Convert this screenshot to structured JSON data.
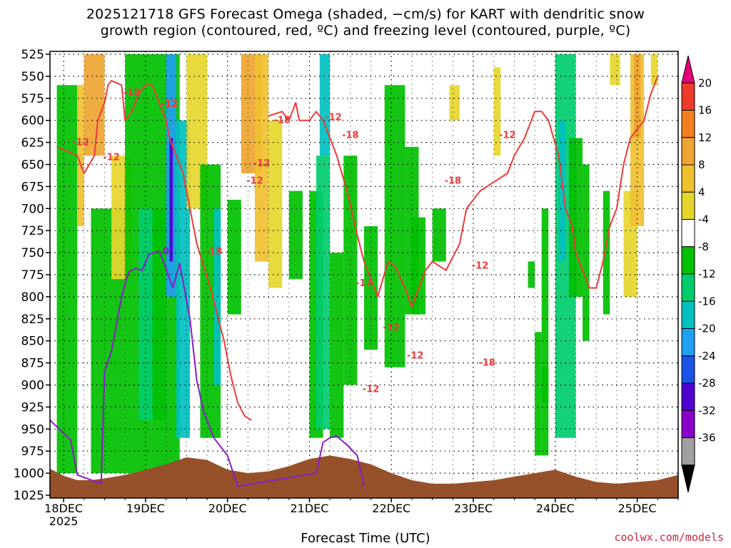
{
  "header": {
    "title_line1": "2025121718 GFS Forecast Omega (shaded, −cm/s) for KART with dendritic snow",
    "title_line2": "growth region (contoured, red, ºC) and freezing level (contoured, purple, ºC)"
  },
  "footer": {
    "credit": "coolwx.com/models"
  },
  "chart_data": {
    "type": "heatmap",
    "title": "2025121718 GFS Forecast Omega (shaded, −cm/s) for KART with dendritic snow growth region (contoured, red, ºC) and freezing level (contoured, purple, ºC)",
    "xlabel": "Forecast Time (UTC)",
    "ylabel": "",
    "y_ticks": [
      525,
      550,
      575,
      600,
      625,
      650,
      675,
      700,
      725,
      750,
      775,
      800,
      825,
      850,
      875,
      900,
      925,
      950,
      975,
      1000,
      1025
    ],
    "y_range_hpa": [
      525,
      1025
    ],
    "y_reversed": true,
    "x_range_hours": [
      -4,
      180
    ],
    "x_ticks": [
      {
        "label": "18DEC",
        "sub": "2025",
        "hour": 0
      },
      {
        "label": "19DEC",
        "sub": "",
        "hour": 24
      },
      {
        "label": "20DEC",
        "sub": "",
        "hour": 48
      },
      {
        "label": "21DEC",
        "sub": "",
        "hour": 72
      },
      {
        "label": "22DEC",
        "sub": "",
        "hour": 96
      },
      {
        "label": "23DEC",
        "sub": "",
        "hour": 120
      },
      {
        "label": "24DEC",
        "sub": "",
        "hour": 144
      },
      {
        "label": "25DEC",
        "sub": "",
        "hour": 168
      }
    ],
    "grid": true,
    "colorbar": {
      "labels": [
        "20",
        "16",
        "12",
        "8",
        "4",
        "-4",
        "-8",
        "-12",
        "-16",
        "-20",
        "-24",
        "-28",
        "-32",
        "-36"
      ],
      "colors": [
        "#e8007a",
        "#ee3a2a",
        "#f28020",
        "#eea531",
        "#f0c030",
        "#e6d62c",
        "#ffffff",
        "#00c000",
        "#00cc6c",
        "#00c0c0",
        "#1fa0f0",
        "#1a53e8",
        "#5000d0",
        "#8a00c8",
        "#a0a0a0",
        "#000000"
      ]
    },
    "freezing_level": {
      "label": "0",
      "color": "#8a1cc8",
      "points": [
        [
          -4,
          940
        ],
        [
          2,
          962
        ],
        [
          4,
          1002
        ],
        [
          11,
          1012
        ],
        [
          12,
          885
        ],
        [
          14,
          862
        ],
        [
          17,
          800
        ],
        [
          19,
          772
        ],
        [
          21,
          768
        ],
        [
          23,
          770
        ],
        [
          25,
          752
        ],
        [
          28,
          748
        ],
        [
          30,
          768
        ],
        [
          32,
          790
        ],
        [
          34,
          762
        ],
        [
          37,
          825
        ],
        [
          39,
          895
        ],
        [
          41,
          930
        ],
        [
          44,
          960
        ],
        [
          48,
          980
        ],
        [
          51,
          1015
        ],
        [
          74,
          1000
        ],
        [
          76,
          965
        ],
        [
          78,
          960
        ],
        [
          80,
          958
        ],
        [
          83,
          968
        ],
        [
          86,
          980
        ],
        [
          88,
          1015
        ]
      ]
    },
    "dgz_contours": {
      "color": "#ee3a3a",
      "labels": [
        "-12",
        "-12",
        "-18",
        "-12",
        "-18",
        "-12",
        "-18",
        "-12",
        "-12",
        "-18",
        "-12",
        "-12",
        "-12",
        "-12",
        "-18",
        "-12",
        "-18",
        "-12"
      ],
      "warm_line_points": [
        [
          -2,
          630
        ],
        [
          4,
          640
        ],
        [
          6,
          660
        ],
        [
          9,
          640
        ],
        [
          10,
          600
        ],
        [
          12,
          580
        ],
        [
          13,
          560
        ],
        [
          14,
          555
        ],
        [
          17,
          560
        ],
        [
          18,
          600
        ],
        [
          20,
          590
        ],
        [
          22,
          570
        ],
        [
          24,
          560
        ],
        [
          26,
          560
        ],
        [
          28,
          580
        ],
        [
          30,
          600
        ],
        [
          31,
          620
        ],
        [
          32,
          630
        ],
        [
          33,
          640
        ],
        [
          35,
          660
        ],
        [
          37,
          700
        ],
        [
          39,
          740
        ],
        [
          41,
          765
        ],
        [
          43,
          790
        ],
        [
          45,
          820
        ],
        [
          47,
          850
        ],
        [
          49,
          890
        ],
        [
          51,
          920
        ],
        [
          53,
          935
        ],
        [
          55,
          940
        ]
      ],
      "cold_line_points": [
        [
          60,
          595
        ],
        [
          64,
          590
        ],
        [
          66,
          600
        ],
        [
          68,
          580
        ],
        [
          69,
          600
        ],
        [
          72,
          600
        ],
        [
          74,
          590
        ],
        [
          76,
          600
        ],
        [
          78,
          620
        ],
        [
          80,
          640
        ],
        [
          83,
          680
        ],
        [
          86,
          730
        ],
        [
          88,
          760
        ],
        [
          90,
          780
        ],
        [
          92,
          800
        ],
        [
          95,
          760
        ],
        [
          97,
          765
        ],
        [
          100,
          790
        ],
        [
          102,
          812
        ],
        [
          104,
          790
        ],
        [
          106,
          770
        ],
        [
          108,
          760
        ],
        [
          112,
          770
        ],
        [
          116,
          740
        ],
        [
          118,
          700
        ],
        [
          122,
          680
        ],
        [
          126,
          670
        ],
        [
          130,
          660
        ],
        [
          132,
          640
        ],
        [
          135,
          620
        ],
        [
          138,
          590
        ],
        [
          140,
          590
        ],
        [
          142,
          600
        ],
        [
          145,
          640
        ],
        [
          147,
          700
        ],
        [
          149,
          720
        ],
        [
          150,
          750
        ],
        [
          152,
          770
        ],
        [
          154,
          790
        ],
        [
          156,
          790
        ],
        [
          158,
          760
        ],
        [
          160,
          720
        ],
        [
          162,
          700
        ],
        [
          164,
          650
        ],
        [
          166,
          620
        ],
        [
          170,
          600
        ],
        [
          172,
          570
        ],
        [
          174,
          550
        ]
      ]
    }
  }
}
